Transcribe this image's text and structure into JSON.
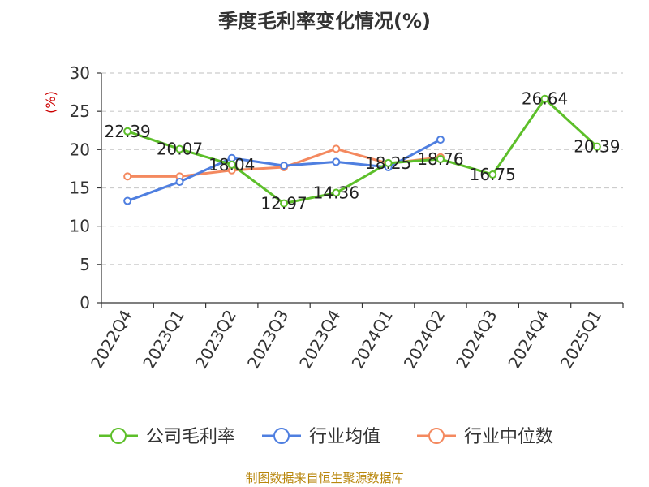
{
  "chart_data": {
    "type": "line",
    "title": "季度毛利率变化情况(%)",
    "ylabel": "(%)",
    "xlabel": "",
    "categories": [
      "2022Q4",
      "2023Q1",
      "2023Q2",
      "2023Q3",
      "2023Q4",
      "2024Q1",
      "2024Q2",
      "2024Q3",
      "2024Q4",
      "2025Q1"
    ],
    "ylim": [
      0,
      30
    ],
    "yticks": [
      0,
      5,
      10,
      15,
      20,
      25,
      30
    ],
    "grid": true,
    "legend_position": "bottom",
    "series": [
      {
        "name": "公司毛利率",
        "color": "#5dbf2a",
        "values": [
          22.39,
          20.07,
          18.04,
          12.97,
          14.36,
          18.25,
          18.76,
          16.75,
          26.64,
          20.39
        ],
        "labels": [
          "22.39",
          "20.07",
          "18.04",
          "12.97",
          "14.36",
          "18.25",
          "18.76",
          "16.75",
          "26.64",
          "20.39"
        ]
      },
      {
        "name": "行业均值",
        "color": "#4f7fe0",
        "values": [
          13.3,
          15.8,
          18.9,
          17.9,
          18.4,
          17.7,
          21.3,
          null,
          null,
          null
        ]
      },
      {
        "name": "行业中位数",
        "color": "#f4895f",
        "values": [
          16.5,
          16.5,
          17.3,
          17.7,
          20.1,
          18.2,
          19.0,
          null,
          null,
          null
        ]
      }
    ]
  },
  "source": "制图数据来自恒生聚源数据库"
}
